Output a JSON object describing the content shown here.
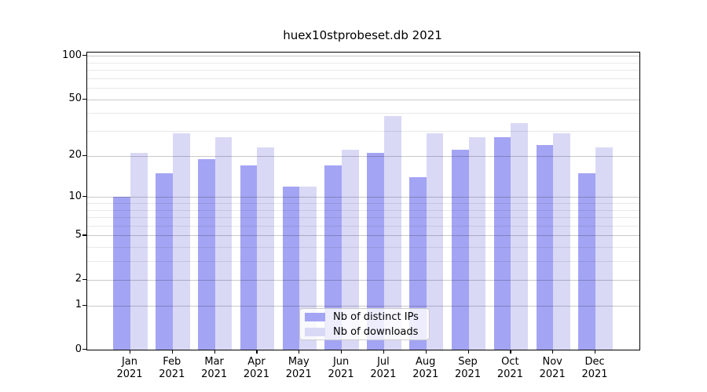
{
  "title": "huex10stprobeset.db 2021",
  "year": "2021",
  "colors": {
    "distinct_ips": "#a4a4f4",
    "downloads": "#d9d9f6",
    "axis": "#000000",
    "grid_major": "#c9c9c9",
    "grid_minor": "#e8e8e8"
  },
  "legend": {
    "items": [
      {
        "label": "Nb of distinct IPs",
        "color": "#a4a4f4"
      },
      {
        "label": "Nb of downloads",
        "color": "#d9d9f6"
      }
    ]
  },
  "chart_data": {
    "type": "bar",
    "title": "huex10stprobeset.db 2021",
    "categories": [
      "Jan",
      "Feb",
      "Mar",
      "Apr",
      "May",
      "Jun",
      "Jul",
      "Aug",
      "Sep",
      "Oct",
      "Nov",
      "Dec"
    ],
    "category_year": "2021",
    "series": [
      {
        "name": "Nb of distinct IPs",
        "color": "#a4a4f4",
        "values": [
          10,
          15,
          19,
          17,
          12,
          17,
          21,
          14,
          22,
          27,
          24,
          15
        ]
      },
      {
        "name": "Nb of downloads",
        "color": "#d9d9f6",
        "values": [
          21,
          29,
          27,
          23,
          12,
          22,
          38,
          29,
          27,
          34,
          29,
          23
        ]
      }
    ],
    "xlabel": "",
    "ylabel": "",
    "y_scale": "log10(1+x)",
    "y_ticks": [
      100,
      50,
      20,
      10,
      5,
      2,
      1,
      0
    ],
    "y_minor_gridlines": [
      3,
      4,
      6,
      7,
      8,
      9,
      30,
      40,
      60,
      70,
      80,
      90
    ],
    "y_major_gridlines": [
      1,
      2,
      5,
      10,
      20,
      50,
      100
    ],
    "ylim": [
      0,
      105
    ],
    "grid": true,
    "legend_position": "lower center"
  }
}
